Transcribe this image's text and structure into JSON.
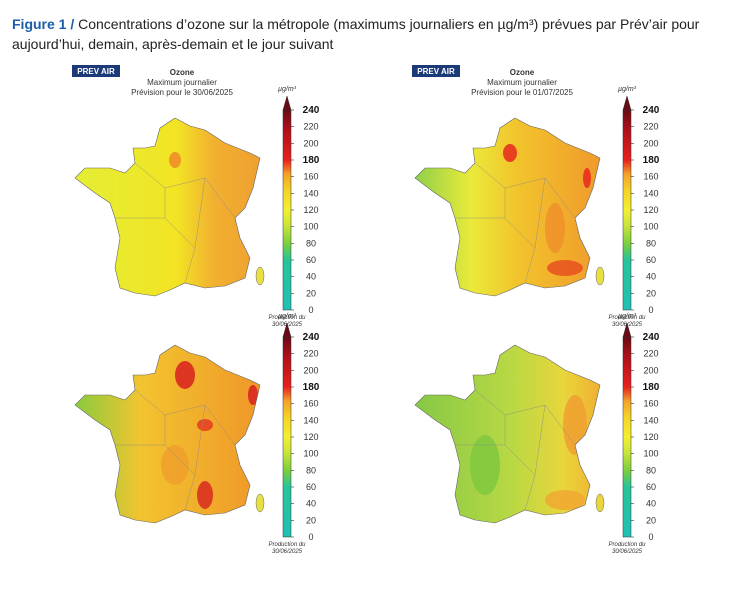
{
  "caption": {
    "label": "Figure 1 /",
    "text": "Concentrations d’ozone sur la métropole (maximums journaliers en µg/m³) prévues par Prév’air pour aujourd’hui, demain, après-demain et le jour suivant"
  },
  "panels": [
    {
      "logo": "PREV AIR",
      "title": "Ozone",
      "subtitle": "Maximum journalier",
      "forecast": "Prévision pour le 30/06/2025"
    },
    {
      "logo": "PREV AIR",
      "title": "Ozone",
      "subtitle": "Maximum journalier",
      "forecast": "Prévision pour le 01/07/2025"
    },
    {},
    {}
  ],
  "colorbar": {
    "unit": "µg/m³",
    "ticks": [
      0,
      20,
      40,
      60,
      80,
      100,
      120,
      140,
      160,
      180,
      200,
      220,
      240
    ],
    "production": "Production du",
    "production_date": "30/06/2025"
  }
}
